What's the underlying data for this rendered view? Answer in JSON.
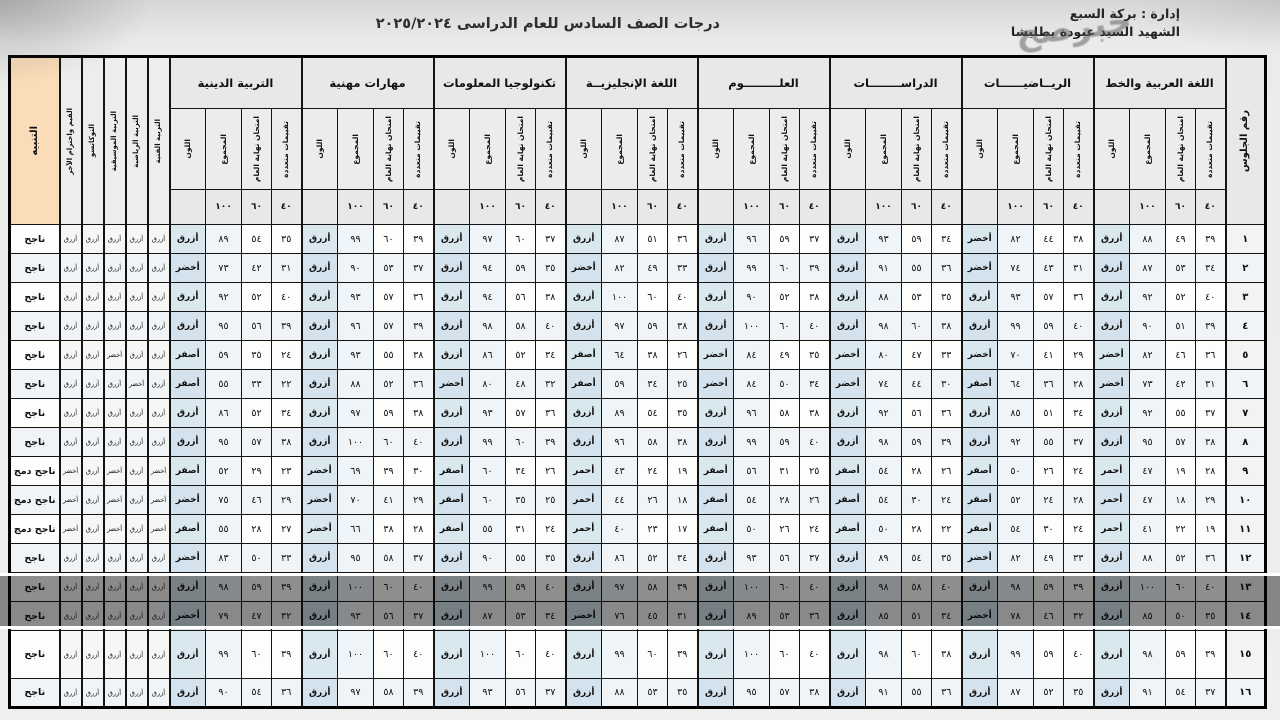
{
  "header": {
    "title": "درجات الصف السادس للعام الدراسى ٢٠٢٥/٢٠٢٤",
    "admin_line": "إدارة : بركة السبع",
    "school_line": "الشهيد السيد عبودة بطليشا",
    "watermark": "خبرصح"
  },
  "table": {
    "seat_header": "رقم الجلوس",
    "notice_header": "التنبيه",
    "sub_headers": [
      "تقييمات متعددة",
      "امتحان نهاية العام",
      "المجموع",
      "اللون"
    ],
    "max_marks": [
      "٤٠",
      "٦٠",
      "١٠٠",
      ""
    ],
    "subjects": [
      "اللغة العربية والخط",
      "الريــاضيــــــات",
      "الدراســــــــات",
      "العلـــــــــوم",
      "اللغة الإنجليزيــة",
      "تكنولوجيا المعلومات",
      "مهارات مهنية",
      "التربية الدينية"
    ],
    "activities": [
      "التربية الفنية",
      "التربية الرياضية",
      "التربية الموسيقية",
      "التوكاتسو",
      "القيم واحترام الآخر"
    ],
    "rows": [
      {
        "seat": "١",
        "notice": "ناجح",
        "highlight": false,
        "subjects": [
          [
            "٣٩",
            "٤٩",
            "٨٨",
            "أزرق"
          ],
          [
            "٣٨",
            "٤٤",
            "٨٢",
            "أخضر"
          ],
          [
            "٣٤",
            "٥٩",
            "٩٣",
            "أزرق"
          ],
          [
            "٣٧",
            "٥٩",
            "٩٦",
            "أزرق"
          ],
          [
            "٣٦",
            "٥١",
            "٨٧",
            "أزرق"
          ],
          [
            "٣٧",
            "٦٠",
            "٩٧",
            "أزرق"
          ],
          [
            "٣٩",
            "٦٠",
            "٩٩",
            "أزرق"
          ],
          [
            "٣٥",
            "٥٤",
            "٨٩",
            "أزرق"
          ]
        ],
        "activities": [
          "أزرق",
          "أزرق",
          "أزرق",
          "أزرق",
          "أزرق"
        ]
      },
      {
        "seat": "٢",
        "notice": "ناجح",
        "highlight": false,
        "subjects": [
          [
            "٣٤",
            "٥٣",
            "٨٧",
            "أزرق"
          ],
          [
            "٣١",
            "٤٣",
            "٧٤",
            "أخضر"
          ],
          [
            "٣٦",
            "٥٥",
            "٩١",
            "أزرق"
          ],
          [
            "٣٩",
            "٦٠",
            "٩٩",
            "أزرق"
          ],
          [
            "٣٣",
            "٤٩",
            "٨٢",
            "أخضر"
          ],
          [
            "٣٥",
            "٥٩",
            "٩٤",
            "أزرق"
          ],
          [
            "٣٧",
            "٥٣",
            "٩٠",
            "أزرق"
          ],
          [
            "٣١",
            "٤٢",
            "٧٣",
            "أخضر"
          ]
        ],
        "activities": [
          "أزرق",
          "أزرق",
          "أزرق",
          "أزرق",
          "أزرق"
        ]
      },
      {
        "seat": "٣",
        "notice": "ناجح",
        "highlight": false,
        "subjects": [
          [
            "٤٠",
            "٥٢",
            "٩٢",
            "أزرق"
          ],
          [
            "٣٦",
            "٥٧",
            "٩٣",
            "أزرق"
          ],
          [
            "٣٥",
            "٥٣",
            "٨٨",
            "أزرق"
          ],
          [
            "٣٨",
            "٥٢",
            "٩٠",
            "أزرق"
          ],
          [
            "٤٠",
            "٦٠",
            "١٠٠",
            "أزرق"
          ],
          [
            "٣٨",
            "٥٦",
            "٩٤",
            "أزرق"
          ],
          [
            "٣٦",
            "٥٧",
            "٩٣",
            "أزرق"
          ],
          [
            "٤٠",
            "٥٢",
            "٩٢",
            "أزرق"
          ]
        ],
        "activities": [
          "أزرق",
          "أزرق",
          "أزرق",
          "أزرق",
          "أزرق"
        ]
      },
      {
        "seat": "٤",
        "notice": "ناجح",
        "highlight": false,
        "subjects": [
          [
            "٣٩",
            "٥١",
            "٩٠",
            "أزرق"
          ],
          [
            "٤٠",
            "٥٩",
            "٩٩",
            "أزرق"
          ],
          [
            "٣٨",
            "٦٠",
            "٩٨",
            "أزرق"
          ],
          [
            "٤٠",
            "٦٠",
            "١٠٠",
            "أزرق"
          ],
          [
            "٣٨",
            "٥٩",
            "٩٧",
            "أزرق"
          ],
          [
            "٤٠",
            "٥٨",
            "٩٨",
            "أزرق"
          ],
          [
            "٣٩",
            "٥٧",
            "٩٦",
            "أزرق"
          ],
          [
            "٣٩",
            "٥٦",
            "٩٥",
            "أزرق"
          ]
        ],
        "activities": [
          "أزرق",
          "أزرق",
          "أزرق",
          "أزرق",
          "أزرق"
        ]
      },
      {
        "seat": "٥",
        "notice": "ناجح",
        "highlight": false,
        "subjects": [
          [
            "٣٦",
            "٤٦",
            "٨٢",
            "أخضر"
          ],
          [
            "٢٩",
            "٤١",
            "٧٠",
            "أخضر"
          ],
          [
            "٣٣",
            "٤٧",
            "٨٠",
            "أخضر"
          ],
          [
            "٣٥",
            "٤٩",
            "٨٤",
            "أخضر"
          ],
          [
            "٢٦",
            "٣٨",
            "٦٤",
            "أصفر"
          ],
          [
            "٣٤",
            "٥٢",
            "٨٦",
            "أزرق"
          ],
          [
            "٣٨",
            "٥٥",
            "٩٣",
            "أزرق"
          ],
          [
            "٢٤",
            "٣٥",
            "٥٩",
            "أصفر"
          ]
        ],
        "activities": [
          "أزرق",
          "أزرق",
          "أخضر",
          "أزرق",
          "أزرق"
        ]
      },
      {
        "seat": "٦",
        "notice": "ناجح",
        "highlight": false,
        "subjects": [
          [
            "٣١",
            "٤٢",
            "٧٣",
            "أخضر"
          ],
          [
            "٢٨",
            "٣٦",
            "٦٤",
            "أصفر"
          ],
          [
            "٣٠",
            "٤٤",
            "٧٤",
            "أخضر"
          ],
          [
            "٣٤",
            "٥٠",
            "٨٤",
            "أخضر"
          ],
          [
            "٢٥",
            "٣٤",
            "٥٩",
            "أصفر"
          ],
          [
            "٣٢",
            "٤٨",
            "٨٠",
            "أخضر"
          ],
          [
            "٣٦",
            "٥٢",
            "٨٨",
            "أزرق"
          ],
          [
            "٢٢",
            "٣٣",
            "٥٥",
            "أصفر"
          ]
        ],
        "activities": [
          "أزرق",
          "أخضر",
          "أزرق",
          "أزرق",
          "أزرق"
        ]
      },
      {
        "seat": "٧",
        "notice": "ناجح",
        "highlight": false,
        "subjects": [
          [
            "٣٧",
            "٥٥",
            "٩٢",
            "أزرق"
          ],
          [
            "٣٤",
            "٥١",
            "٨٥",
            "أزرق"
          ],
          [
            "٣٦",
            "٥٦",
            "٩٢",
            "أزرق"
          ],
          [
            "٣٨",
            "٥٨",
            "٩٦",
            "أزرق"
          ],
          [
            "٣٥",
            "٥٤",
            "٨٩",
            "أزرق"
          ],
          [
            "٣٦",
            "٥٧",
            "٩٣",
            "أزرق"
          ],
          [
            "٣٨",
            "٥٩",
            "٩٧",
            "أزرق"
          ],
          [
            "٣٤",
            "٥٢",
            "٨٦",
            "أزرق"
          ]
        ],
        "activities": [
          "أزرق",
          "أزرق",
          "أزرق",
          "أزرق",
          "أزرق"
        ]
      },
      {
        "seat": "٨",
        "notice": "ناجح",
        "highlight": false,
        "subjects": [
          [
            "٣٨",
            "٥٧",
            "٩٥",
            "أزرق"
          ],
          [
            "٣٧",
            "٥٥",
            "٩٢",
            "أزرق"
          ],
          [
            "٣٩",
            "٥٩",
            "٩٨",
            "أزرق"
          ],
          [
            "٤٠",
            "٥٩",
            "٩٩",
            "أزرق"
          ],
          [
            "٣٨",
            "٥٨",
            "٩٦",
            "أزرق"
          ],
          [
            "٣٩",
            "٦٠",
            "٩٩",
            "أزرق"
          ],
          [
            "٤٠",
            "٦٠",
            "١٠٠",
            "أزرق"
          ],
          [
            "٣٨",
            "٥٧",
            "٩٥",
            "أزرق"
          ]
        ],
        "activities": [
          "أزرق",
          "أزرق",
          "أزرق",
          "أزرق",
          "أزرق"
        ]
      },
      {
        "seat": "٩",
        "notice": "ناجح دمج",
        "highlight": false,
        "subjects": [
          [
            "٢٨",
            "١٩",
            "٤٧",
            "أحمر"
          ],
          [
            "٢٤",
            "٢٦",
            "٥٠",
            "أصفر"
          ],
          [
            "٢٦",
            "٢٨",
            "٥٤",
            "أصفر"
          ],
          [
            "٢٥",
            "٣١",
            "٥٦",
            "أصفر"
          ],
          [
            "١٩",
            "٢٤",
            "٤٣",
            "أحمر"
          ],
          [
            "٢٦",
            "٣٤",
            "٦٠",
            "أصفر"
          ],
          [
            "٣٠",
            "٣٩",
            "٦٩",
            "أخضر"
          ],
          [
            "٢٣",
            "٢٩",
            "٥٢",
            "أصفر"
          ]
        ],
        "activities": [
          "أخضر",
          "أزرق",
          "أخضر",
          "أزرق",
          "أخضر"
        ]
      },
      {
        "seat": "١٠",
        "notice": "ناجح دمج",
        "highlight": false,
        "subjects": [
          [
            "٢٩",
            "١٨",
            "٤٧",
            "أحمر"
          ],
          [
            "٢٨",
            "٢٤",
            "٥٢",
            "أصفر"
          ],
          [
            "٢٤",
            "٣٠",
            "٥٤",
            "أصفر"
          ],
          [
            "٢٦",
            "٢٨",
            "٥٤",
            "أصفر"
          ],
          [
            "١٨",
            "٢٦",
            "٤٤",
            "أحمر"
          ],
          [
            "٢٥",
            "٣٥",
            "٦٠",
            "أصفر"
          ],
          [
            "٢٩",
            "٤١",
            "٧٠",
            "أخضر"
          ],
          [
            "٢٩",
            "٤٦",
            "٧٥",
            "أخضر"
          ]
        ],
        "activities": [
          "أخضر",
          "أزرق",
          "أخضر",
          "أزرق",
          "أخضر"
        ]
      },
      {
        "seat": "١١",
        "notice": "ناجح دمج",
        "highlight": false,
        "subjects": [
          [
            "١٩",
            "٢٢",
            "٤١",
            "أحمر"
          ],
          [
            "٢٤",
            "٣٠",
            "٥٤",
            "أصفر"
          ],
          [
            "٢٢",
            "٢٨",
            "٥٠",
            "أصفر"
          ],
          [
            "٢٤",
            "٢٦",
            "٥٠",
            "أصفر"
          ],
          [
            "١٧",
            "٢٣",
            "٤٠",
            "أحمر"
          ],
          [
            "٢٤",
            "٣١",
            "٥٥",
            "أصفر"
          ],
          [
            "٢٨",
            "٣٨",
            "٦٦",
            "أخضر"
          ],
          [
            "٢٧",
            "٢٨",
            "٥٥",
            "أصفر"
          ]
        ],
        "activities": [
          "أخضر",
          "أزرق",
          "أخضر",
          "أزرق",
          "أخضر"
        ]
      },
      {
        "seat": "١٢",
        "notice": "ناجح",
        "highlight": false,
        "subjects": [
          [
            "٣٦",
            "٥٢",
            "٨٨",
            "أزرق"
          ],
          [
            "٣٣",
            "٤٩",
            "٨٢",
            "أخضر"
          ],
          [
            "٣٥",
            "٥٤",
            "٨٩",
            "أزرق"
          ],
          [
            "٣٧",
            "٥٦",
            "٩٣",
            "أزرق"
          ],
          [
            "٣٤",
            "٥٢",
            "٨٦",
            "أزرق"
          ],
          [
            "٣٥",
            "٥٥",
            "٩٠",
            "أزرق"
          ],
          [
            "٣٧",
            "٥٨",
            "٩٥",
            "أزرق"
          ],
          [
            "٣٣",
            "٥٠",
            "٨٣",
            "أخضر"
          ]
        ],
        "activities": [
          "أزرق",
          "أزرق",
          "أزرق",
          "أزرق",
          "أزرق"
        ]
      },
      {
        "seat": "١٣",
        "notice": "ناجح",
        "highlight": false,
        "subjects": [
          [
            "٤٠",
            "٦٠",
            "١٠٠",
            "أزرق"
          ],
          [
            "٣٩",
            "٥٩",
            "٩٨",
            "أزرق"
          ],
          [
            "٤٠",
            "٥٨",
            "٩٨",
            "أزرق"
          ],
          [
            "٤٠",
            "٦٠",
            "١٠٠",
            "أزرق"
          ],
          [
            "٣٩",
            "٥٨",
            "٩٧",
            "أزرق"
          ],
          [
            "٤٠",
            "٥٩",
            "٩٩",
            "أزرق"
          ],
          [
            "٤٠",
            "٦٠",
            "١٠٠",
            "أزرق"
          ],
          [
            "٣٩",
            "٥٩",
            "٩٨",
            "أزرق"
          ]
        ],
        "activities": [
          "أزرق",
          "أزرق",
          "أزرق",
          "أزرق",
          "أزرق"
        ]
      },
      {
        "seat": "١٤",
        "notice": "ناجح",
        "highlight": false,
        "subjects": [
          [
            "٣٥",
            "٥٠",
            "٨٥",
            "أزرق"
          ],
          [
            "٣٢",
            "٤٦",
            "٧٨",
            "أخضر"
          ],
          [
            "٣٤",
            "٥١",
            "٨٥",
            "أزرق"
          ],
          [
            "٣٦",
            "٥٣",
            "٨٩",
            "أزرق"
          ],
          [
            "٣١",
            "٤٥",
            "٧٦",
            "أخضر"
          ],
          [
            "٣٤",
            "٥٣",
            "٨٧",
            "أزرق"
          ],
          [
            "٣٧",
            "٥٦",
            "٩٣",
            "أزرق"
          ],
          [
            "٣٢",
            "٤٧",
            "٧٩",
            "أخضر"
          ]
        ],
        "activities": [
          "أزرق",
          "أزرق",
          "أزرق",
          "أزرق",
          "أزرق"
        ]
      },
      {
        "seat": "١٥",
        "notice": "ناجح",
        "highlight": true,
        "subjects": [
          [
            "٣٩",
            "٥٩",
            "٩٨",
            "أزرق"
          ],
          [
            "٤٠",
            "٥٩",
            "٩٩",
            "أزرق"
          ],
          [
            "٣٨",
            "٦٠",
            "٩٨",
            "أزرق"
          ],
          [
            "٤٠",
            "٦٠",
            "١٠٠",
            "أزرق"
          ],
          [
            "٣٩",
            "٦٠",
            "٩٩",
            "أزرق"
          ],
          [
            "٤٠",
            "٦٠",
            "١٠٠",
            "أزرق"
          ],
          [
            "٤٠",
            "٦٠",
            "١٠٠",
            "أزرق"
          ],
          [
            "٣٩",
            "٦٠",
            "٩٩",
            "أزرق"
          ]
        ],
        "activities": [
          "أزرق",
          "أزرق",
          "أزرق",
          "أزرق",
          "أزرق"
        ]
      },
      {
        "seat": "١٦",
        "notice": "ناجح",
        "highlight": false,
        "subjects": [
          [
            "٣٧",
            "٥٤",
            "٩١",
            "أزرق"
          ],
          [
            "٣٥",
            "٥٢",
            "٨٧",
            "أزرق"
          ],
          [
            "٣٦",
            "٥٥",
            "٩١",
            "أزرق"
          ],
          [
            "٣٨",
            "٥٧",
            "٩٥",
            "أزرق"
          ],
          [
            "٣٥",
            "٥٣",
            "٨٨",
            "أزرق"
          ],
          [
            "٣٧",
            "٥٦",
            "٩٣",
            "أزرق"
          ],
          [
            "٣٩",
            "٥٨",
            "٩٧",
            "أزرق"
          ],
          [
            "٣٦",
            "٥٤",
            "٩٠",
            "أزرق"
          ]
        ],
        "activities": [
          "أزرق",
          "أزرق",
          "أزرق",
          "أزرق",
          "أزرق"
        ]
      }
    ]
  }
}
